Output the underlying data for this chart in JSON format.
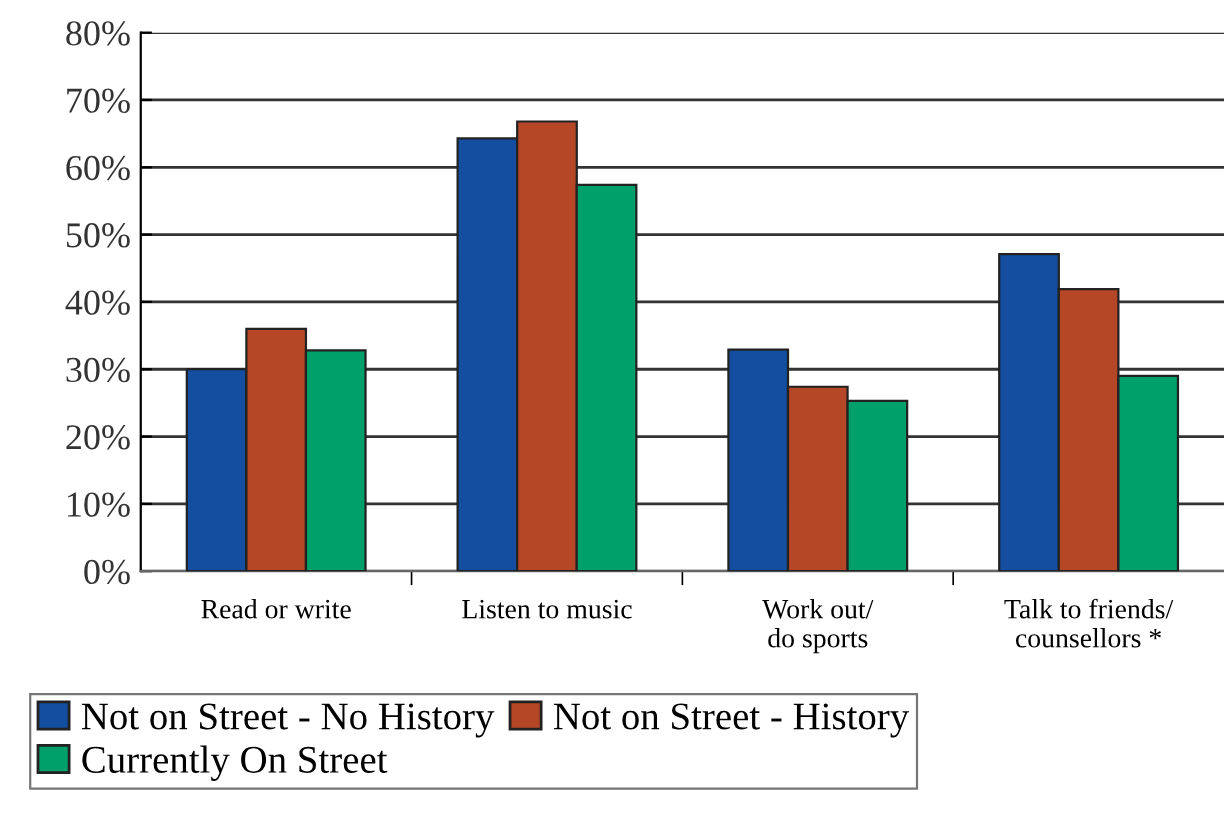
{
  "chart_data": {
    "type": "bar",
    "categories": [
      "Read or write",
      "Listen to music",
      "Work out/\ndo sports",
      "Talk to friends/\ncounsellors *"
    ],
    "series": [
      {
        "name": "Not on Street - No History",
        "color": "#134ea0",
        "values": [
          30,
          64.3,
          32.9,
          47.1
        ]
      },
      {
        "name": "Not on Street - History",
        "color": "#b64726",
        "values": [
          36,
          66.8,
          27.4,
          41.9
        ]
      },
      {
        "name": "Currently On Street",
        "color": "#00a06a",
        "values": [
          32.8,
          57.4,
          25.3,
          29
        ]
      }
    ],
    "ylim": [
      0,
      80
    ],
    "yticks": [
      {
        "value": 0,
        "label": "0%"
      },
      {
        "value": 10,
        "label": "10%"
      },
      {
        "value": 20,
        "label": "20%"
      },
      {
        "value": 30,
        "label": "30%"
      },
      {
        "value": 40,
        "label": "40%"
      },
      {
        "value": 50,
        "label": "50%"
      },
      {
        "value": 60,
        "label": "60%"
      },
      {
        "value": 70,
        "label": "70%"
      },
      {
        "value": 80,
        "label": "80%"
      }
    ],
    "grid": "y",
    "legend": "bottom"
  }
}
